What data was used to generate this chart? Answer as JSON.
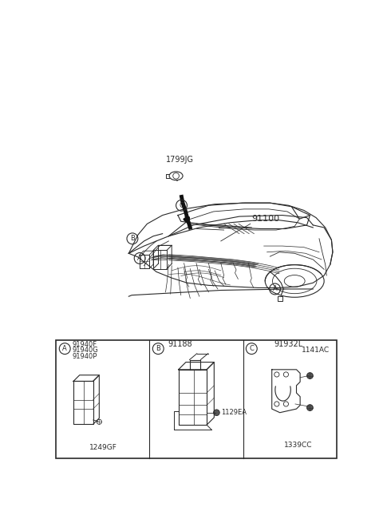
{
  "bg_color": "#ffffff",
  "line_color": "#2a2a2a",
  "figsize": [
    4.8,
    6.55
  ],
  "dpi": 100,
  "part_labels": {
    "main": "91100",
    "cap": "1799JG",
    "A_parts": [
      "91940F",
      "91940G",
      "91940P"
    ],
    "A_bolt": "1249GF",
    "B_part": "91188",
    "B_bolt": "1129EA",
    "C_part": "91932L",
    "C_bolt1": "1141AC",
    "C_bolt2": "1339CC"
  }
}
